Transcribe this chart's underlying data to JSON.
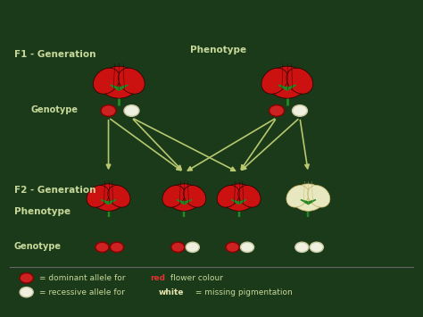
{
  "bg_color": "#1a3a1a",
  "text_color": "#c8d89a",
  "title_color": "#c8d89a",
  "arrow_color": "#b8c870",
  "red_allele_color": "#cc2222",
  "white_allele_color": "#f0f0e0",
  "white_allele_edge": "#c8c8a0",
  "legend_line_color": "#888888",
  "f1_label": "F1 - Generation",
  "f2_label": "F2 - Generation",
  "phenotype_label": "Phenotype",
  "genotype_label": "Genotype",
  "legend_red": "= dominant allele for  flower colour",
  "legend_red_word": "red",
  "legend_white": "= recessive allele for  = missing pigmentation",
  "legend_white_word": "white"
}
